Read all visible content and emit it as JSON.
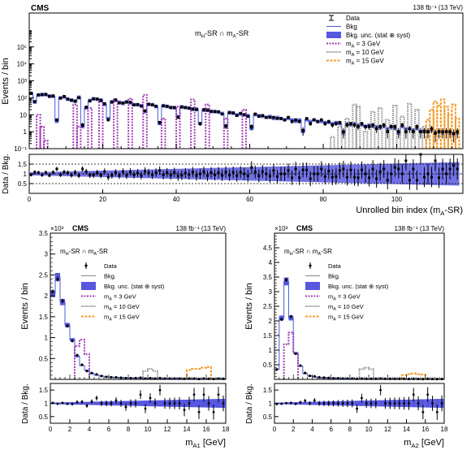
{
  "colors": {
    "data": "#000000",
    "bkg": "#4a5cd6",
    "unc": "#5757e0",
    "sig3": "#a03cb4",
    "sig10": "#999999",
    "sig15": "#f39c2b",
    "frame": "#000000"
  },
  "chart_data": [
    {
      "id": "top",
      "type": "bar",
      "experiment": "CMS",
      "lumi": "138 fb⁻¹ (13 TeV)",
      "region": "m_H-SR ∩ m_A-SR",
      "ylabel": "Events / bin",
      "xlabel": "Unrolled bin index (m_A-SR)",
      "ratio_ylabel": "Data / Bkg.",
      "log_y": true,
      "ylim": [
        0.1,
        10000000
      ],
      "xlim": [
        0,
        118
      ],
      "ratio_ylim": [
        0,
        2
      ],
      "legend": [
        "Data",
        "Bkg",
        "Bkg. unc. (stat ⊕ syst)",
        "m_A = 3 GeV",
        "m_A = 10 GeV",
        "m_A = 15 GeV"
      ],
      "x_ticks": [
        "0",
        "20",
        "40",
        "60",
        "80",
        "100"
      ],
      "y_ticks": [
        "10⁻¹",
        "1",
        "10",
        "10²",
        "10³",
        "10⁴",
        "10⁵"
      ],
      "ratio_ticks": [
        "0.5",
        "1",
        "1.5"
      ],
      "bkg": [
        190,
        55,
        140,
        160,
        150,
        130,
        120,
        4,
        100,
        110,
        80,
        75,
        60,
        110,
        2,
        25,
        70,
        90,
        80,
        75,
        40,
        6,
        60,
        70,
        55,
        45,
        60,
        50,
        40,
        38,
        35,
        15,
        40,
        40,
        30,
        3,
        35,
        30,
        28,
        25,
        8,
        30,
        26,
        25,
        20,
        22,
        3,
        18,
        20,
        15,
        16,
        14,
        12,
        2,
        14,
        12,
        10,
        11,
        10,
        9,
        1.5,
        10,
        9,
        8,
        7,
        8,
        6,
        7,
        6,
        5,
        6,
        5,
        4,
        5,
        1,
        5,
        4,
        5,
        4,
        4,
        3.5,
        3.5,
        3,
        3.5,
        3,
        0.8,
        3,
        2.5,
        3,
        2.5,
        2.5,
        2,
        2.5,
        2,
        2,
        1.8,
        2,
        1.5,
        2,
        1.5,
        0.8,
        2,
        1.5,
        1.5,
        1.2,
        1.5,
        1,
        1.2,
        1,
        1.2,
        0.9,
        1,
        0.8,
        1,
        0.8,
        0.7,
        0.8
      ],
      "data": [
        180,
        60,
        150,
        150,
        160,
        120,
        130,
        5,
        95,
        120,
        85,
        70,
        65,
        100,
        2.5,
        28,
        65,
        85,
        85,
        70,
        45,
        5,
        55,
        75,
        50,
        50,
        55,
        55,
        38,
        40,
        32,
        17,
        42,
        38,
        32,
        3.5,
        33,
        32,
        26,
        27,
        7,
        28,
        27,
        24,
        22,
        20,
        3,
        20,
        18,
        16,
        15,
        15,
        11,
        2.2,
        13,
        13,
        9,
        12,
        10,
        8,
        2,
        11,
        8,
        9,
        7,
        7,
        7,
        6,
        6,
        5,
        7,
        4,
        5,
        4,
        1.2,
        6,
        3,
        5,
        4,
        5,
        3,
        4,
        2.5,
        3,
        3.5,
        1,
        2.5,
        3,
        2.5,
        2,
        3,
        2,
        2,
        2.5,
        1.5,
        2,
        2.5,
        1,
        2,
        2,
        1,
        2.5,
        1,
        1.5,
        1,
        2,
        1,
        1,
        1,
        1.5,
        0.8,
        1,
        1,
        1,
        1,
        0.8,
        1
      ],
      "ratio": [
        0.95,
        1.09,
        1.07,
        0.94,
        1.07,
        0.92,
        1.08,
        1.25,
        0.95,
        1.09,
        1.06,
        0.93,
        1.08,
        0.91,
        1.25,
        1.12,
        0.93,
        0.94,
        1.06,
        0.93,
        1.12,
        0.83,
        0.92,
        1.07,
        0.91,
        1.11,
        0.92,
        1.1,
        0.95,
        1.05,
        0.91,
        1.13,
        1.05,
        0.95,
        1.07,
        1.17,
        0.94,
        1.07,
        0.93,
        1.08,
        0.88,
        0.93,
        1.04,
        0.96,
        1.1,
        0.91,
        1,
        1.11,
        0.9,
        1.07,
        0.94,
        1.07,
        0.92,
        1.1,
        0.93,
        1.08,
        0.9,
        1.09,
        1,
        0.89,
        1.33,
        1.1,
        0.89,
        1.12,
        1,
        0.88,
        1.17,
        0.86,
        1,
        1,
        1.17,
        0.8,
        1.25,
        0.8,
        1.2,
        1.2,
        0.75,
        1,
        1,
        1.25,
        0.86,
        1.14,
        0.83,
        0.86,
        1.17,
        1.25,
        0.83,
        1.2,
        0.83,
        0.8,
        1.2,
        1,
        0.8,
        1.25,
        0.75,
        1.11,
        1.25,
        0.67,
        1,
        1.33,
        1.25,
        1,
        1.67,
        0.67,
        1.25,
        0.67,
        2,
        0.83,
        1,
        0.83,
        1.67,
        0.8,
        1.25,
        1,
        1.25,
        1.43,
        1.25
      ],
      "sig3": {
        "bins": [
          [
            2,
            10
          ],
          [
            3,
            2
          ],
          [
            4,
            0.3
          ],
          [
            12,
            40
          ],
          [
            13,
            2
          ],
          [
            16,
            25
          ],
          [
            19,
            60
          ],
          [
            23,
            80
          ],
          [
            27,
            90
          ],
          [
            31,
            150
          ],
          [
            36,
            6
          ],
          [
            40,
            30
          ],
          [
            44,
            80
          ],
          [
            48,
            40
          ],
          [
            53,
            6
          ],
          [
            58,
            20
          ]
        ]
      },
      "sig10": {
        "bins": [
          [
            82,
            0.5
          ],
          [
            84,
            2
          ],
          [
            86,
            6
          ],
          [
            88,
            40
          ],
          [
            89,
            30
          ],
          [
            91,
            1
          ],
          [
            93,
            15
          ],
          [
            95,
            25
          ],
          [
            97,
            5
          ],
          [
            99,
            35
          ],
          [
            101,
            8
          ],
          [
            103,
            45
          ],
          [
            105,
            20
          ],
          [
            107,
            2
          ]
        ]
      },
      "sig15": {
        "bins": [
          [
            108,
            5
          ],
          [
            109,
            20
          ],
          [
            110,
            60
          ],
          [
            111,
            35
          ],
          [
            112,
            80
          ],
          [
            113,
            30
          ],
          [
            114,
            10
          ],
          [
            115,
            40
          ],
          [
            116,
            6
          ]
        ]
      }
    },
    {
      "id": "bottom-left",
      "type": "bar",
      "experiment": "CMS",
      "exponent": "×10³",
      "lumi": "138 fb⁻¹ (13 TeV)",
      "region": "m_H-SR ∩ m_A-SR",
      "ylabel": "Events / bin",
      "xlabel": "m_A1 [GeV]",
      "ratio_ylabel": "Data / Bkg.",
      "ylim": [
        0,
        3.5
      ],
      "xlim": [
        0,
        18
      ],
      "ratio_ylim": [
        0.25,
        1.75
      ],
      "x_ticks": [
        "0",
        "2",
        "4",
        "6",
        "8",
        "10",
        "12",
        "14",
        "16",
        "18"
      ],
      "y_ticks": [
        "0.5",
        "1",
        "1.5",
        "2",
        "2.5",
        "3",
        "3.5"
      ],
      "ratio_ticks": [
        "0.5",
        "1",
        "1.5"
      ],
      "legend": [
        "Data",
        "Bkg.",
        "Bkg. unc. (stat ⊕ syst)",
        "m_A = 3 GeV",
        "m_A = 10 GeV",
        "m_A = 15 GeV"
      ],
      "edges": [
        0,
        0.5,
        1,
        1.5,
        2,
        2.5,
        3,
        3.5,
        4,
        4.5,
        5,
        5.5,
        6,
        6.5,
        7,
        7.5,
        8,
        8.5,
        9,
        9.5,
        10,
        10.5,
        11,
        11.5,
        12,
        12.5,
        13,
        13.5,
        14,
        14.5,
        15,
        15.5,
        16,
        16.5,
        17,
        17.5,
        18
      ],
      "bkg": [
        2.05,
        2.45,
        1.85,
        1.3,
        0.95,
        0.55,
        0.33,
        0.22,
        0.14,
        0.1,
        0.08,
        0.06,
        0.05,
        0.045,
        0.04,
        0.035,
        0.03,
        0.03,
        0.03,
        0.025,
        0.025,
        0.02,
        0.02,
        0.02,
        0.02,
        0.02,
        0.02,
        0.02,
        0.02,
        0.015,
        0.015,
        0.015,
        0.015,
        0.015,
        0.015,
        0.015
      ],
      "data": [
        2.1,
        2.4,
        1.88,
        1.28,
        0.92,
        0.58,
        0.35,
        0.2,
        0.15,
        0.12,
        0.08,
        0.06,
        0.05,
        0.05,
        0.04,
        0.03,
        0.03,
        0.03,
        0.04,
        0.02,
        0.03,
        0.02,
        0.03,
        0.02,
        0.02,
        0.02,
        0.02,
        0.015,
        0.02,
        0.02,
        0.01,
        0.02,
        0.015,
        0.01,
        0.02,
        0.015
      ],
      "ratio": [
        1.02,
        0.98,
        1.02,
        0.98,
        0.97,
        1.05,
        1.06,
        0.91,
        1.07,
        1.2,
        1,
        1,
        1,
        1.11,
        1,
        0.86,
        1,
        1,
        1.33,
        0.8,
        1.2,
        1,
        1.5,
        1,
        1,
        1,
        1,
        0.75,
        1,
        1.33,
        0.67,
        1.33,
        1,
        0.67,
        1.33,
        1
      ],
      "sig3": {
        "range": [
          2.5,
          4
        ],
        "values": [
          0.8,
          0.95,
          0.6
        ]
      },
      "sig10": {
        "range": [
          9.5,
          11
        ],
        "values": [
          0.2,
          0.25,
          0.2
        ]
      },
      "sig15": {
        "range": [
          14,
          16.5
        ],
        "values": [
          0.22,
          0.25,
          0.25,
          0.28,
          0.3
        ]
      }
    },
    {
      "id": "bottom-right",
      "type": "bar",
      "experiment": "CMS",
      "exponent": "×10³",
      "lumi": "138 fb⁻¹ (13 TeV)",
      "region": "m_H-SR ∩ m_A-SR",
      "ylabel": "Events / bin",
      "xlabel": "m_A2 [GeV]",
      "ratio_ylabel": "Data / Bkg.",
      "ylim": [
        0,
        5
      ],
      "xlim": [
        0,
        18
      ],
      "ratio_ylim": [
        0.25,
        1.75
      ],
      "x_ticks": [
        "0",
        "2",
        "4",
        "6",
        "8",
        "10",
        "12",
        "14",
        "16",
        "18"
      ],
      "y_ticks": [
        "0.5",
        "1",
        "1.5",
        "2",
        "2.5",
        "3",
        "3.5",
        "4",
        "4.5"
      ],
      "ratio_ticks": [
        "0.5",
        "1",
        "1.5"
      ],
      "legend": [
        "Data",
        "Bkg.",
        "Bkg. unc. (stat ⊕ syst)",
        "m_A = 3 GeV",
        "m_A = 10 GeV",
        "m_A = 15 GeV"
      ],
      "edges": [
        0,
        0.5,
        1,
        1.5,
        2,
        2.5,
        3,
        3.5,
        4,
        4.5,
        5,
        5.5,
        6,
        6.5,
        7,
        7.5,
        8,
        8.5,
        9,
        9.5,
        10,
        10.5,
        11,
        11.5,
        12,
        12.5,
        13,
        13.5,
        14,
        14.5,
        15,
        15.5,
        16,
        16.5,
        17,
        17.5,
        18
      ],
      "bkg": [
        0.35,
        2.1,
        3.35,
        2.1,
        0.9,
        0.45,
        0.2,
        0.12,
        0.09,
        0.07,
        0.06,
        0.05,
        0.04,
        0.04,
        0.03,
        0.03,
        0.03,
        0.025,
        0.025,
        0.02,
        0.02,
        0.02,
        0.02,
        0.02,
        0.02,
        0.02,
        0.02,
        0.02,
        0.015,
        0.015,
        0.015,
        0.015,
        0.015,
        0.015,
        0.015,
        0.015
      ],
      "data": [
        0.34,
        2.05,
        3.4,
        2.15,
        0.88,
        0.47,
        0.22,
        0.12,
        0.1,
        0.07,
        0.06,
        0.05,
        0.04,
        0.04,
        0.03,
        0.03,
        0.03,
        0.02,
        0.03,
        0.02,
        0.02,
        0.02,
        0.03,
        0.02,
        0.02,
        0.02,
        0.02,
        0.02,
        0.015,
        0.02,
        0.015,
        0.01,
        0.02,
        0.015,
        0.01,
        0.015
      ],
      "ratio": [
        0.97,
        0.98,
        1.01,
        1.02,
        0.98,
        1.04,
        1.1,
        1,
        1.11,
        1,
        1,
        1,
        1,
        1,
        1,
        1,
        1,
        0.8,
        1.2,
        1,
        1,
        1,
        1.5,
        1,
        1,
        1,
        1,
        1,
        1,
        1.33,
        1,
        0.67,
        1.33,
        1,
        0.67,
        1
      ],
      "sig3": {
        "range": [
          1,
          2.5
        ],
        "values": [
          1.2,
          1.6,
          0.9
        ]
      },
      "sig10": {
        "range": [
          9,
          10.5
        ],
        "values": [
          0.35,
          0.4,
          0.35
        ]
      },
      "sig15": {
        "range": [
          13.5,
          16
        ],
        "values": [
          0.15,
          0.18,
          0.2,
          0.18,
          0.17
        ]
      }
    }
  ]
}
